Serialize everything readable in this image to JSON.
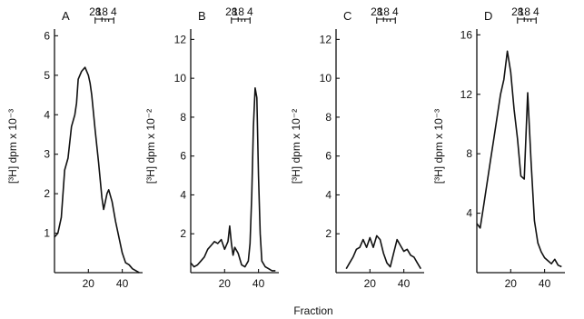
{
  "figure": {
    "xlabel": "Fraction"
  },
  "chart_data": [
    {
      "type": "line",
      "panel_label": "A",
      "ylabel": "[³H] dpm x 10⁻³",
      "xlim": [
        0,
        52
      ],
      "ylim": [
        0,
        6.4
      ],
      "xticks": [
        20,
        40
      ],
      "yticks": [
        1,
        2,
        3,
        4,
        5,
        6
      ],
      "markers": {
        "labels": [
          "28",
          "18",
          "4"
        ],
        "positions": [
          24,
          28,
          35
        ]
      },
      "x": [
        0,
        2,
        4,
        6,
        8,
        10,
        12,
        13,
        14,
        16,
        18,
        20,
        21,
        22,
        24,
        26,
        28,
        29,
        30,
        31,
        32,
        34,
        36,
        38,
        40,
        42,
        44,
        46,
        48,
        50
      ],
      "y": [
        0.9,
        1.0,
        1.4,
        2.6,
        2.9,
        3.7,
        4.0,
        4.3,
        4.9,
        5.1,
        5.2,
        5.0,
        4.8,
        4.5,
        3.6,
        2.8,
        1.9,
        1.6,
        1.8,
        2.0,
        2.1,
        1.8,
        1.3,
        0.9,
        0.5,
        0.25,
        0.2,
        0.1,
        0.05,
        0.0
      ]
    },
    {
      "type": "line",
      "panel_label": "B",
      "ylabel": "[³H] dpm x 10⁻²",
      "xlim": [
        0,
        52
      ],
      "ylim": [
        0,
        13
      ],
      "xticks": [
        20,
        40
      ],
      "yticks": [
        2,
        4,
        6,
        8,
        10,
        12
      ],
      "markers": {
        "labels": [
          "28",
          "18",
          "4"
        ],
        "positions": [
          24,
          28,
          35
        ]
      },
      "x": [
        0,
        2,
        4,
        6,
        8,
        10,
        12,
        14,
        16,
        18,
        20,
        22,
        23,
        24,
        25,
        26,
        28,
        30,
        32,
        34,
        35,
        36,
        37,
        38,
        39,
        40,
        41,
        42,
        44,
        46,
        48,
        50
      ],
      "y": [
        0.5,
        0.3,
        0.4,
        0.6,
        0.8,
        1.2,
        1.4,
        1.6,
        1.5,
        1.7,
        1.2,
        1.6,
        2.4,
        1.5,
        0.9,
        1.3,
        1.0,
        0.4,
        0.3,
        0.6,
        1.5,
        4.0,
        7.5,
        9.5,
        9.0,
        5.0,
        2.0,
        0.6,
        0.3,
        0.2,
        0.1,
        0.1
      ]
    },
    {
      "type": "line",
      "panel_label": "C",
      "ylabel": "[³H] dpm x 10⁻²",
      "xlim": [
        0,
        52
      ],
      "ylim": [
        0,
        13
      ],
      "xticks": [
        20,
        40
      ],
      "yticks": [
        2,
        4,
        6,
        8,
        10,
        12
      ],
      "markers": {
        "labels": [
          "28",
          "18",
          "4"
        ],
        "positions": [
          24,
          28,
          35
        ]
      },
      "x": [
        6,
        8,
        10,
        12,
        14,
        16,
        18,
        20,
        22,
        24,
        26,
        28,
        30,
        32,
        34,
        36,
        38,
        40,
        42,
        44,
        46,
        48,
        50
      ],
      "y": [
        0.2,
        0.5,
        0.8,
        1.2,
        1.3,
        1.7,
        1.3,
        1.8,
        1.3,
        1.9,
        1.7,
        1.0,
        0.5,
        0.3,
        1.0,
        1.7,
        1.4,
        1.1,
        1.2,
        0.9,
        0.8,
        0.5,
        0.2
      ]
    },
    {
      "type": "line",
      "panel_label": "D",
      "ylabel": "[³H] dpm x 10⁻³",
      "xlim": [
        0,
        52
      ],
      "ylim": [
        0,
        17
      ],
      "xticks": [
        20,
        40
      ],
      "yticks": [
        4,
        8,
        12,
        16
      ],
      "markers": {
        "labels": [
          "28",
          "18",
          "4"
        ],
        "positions": [
          24,
          28,
          35
        ]
      },
      "x": [
        0,
        2,
        4,
        6,
        8,
        10,
        12,
        14,
        16,
        18,
        20,
        22,
        24,
        26,
        28,
        30,
        32,
        34,
        36,
        38,
        40,
        42,
        44,
        46,
        48,
        50
      ],
      "y": [
        3.3,
        3.0,
        4.5,
        6.0,
        7.5,
        9.0,
        10.5,
        12.0,
        13.0,
        14.9,
        13.5,
        11.0,
        9.0,
        6.5,
        6.3,
        12.1,
        7.5,
        3.5,
        2.0,
        1.4,
        1.0,
        0.8,
        0.6,
        0.9,
        0.5,
        0.4
      ]
    }
  ]
}
